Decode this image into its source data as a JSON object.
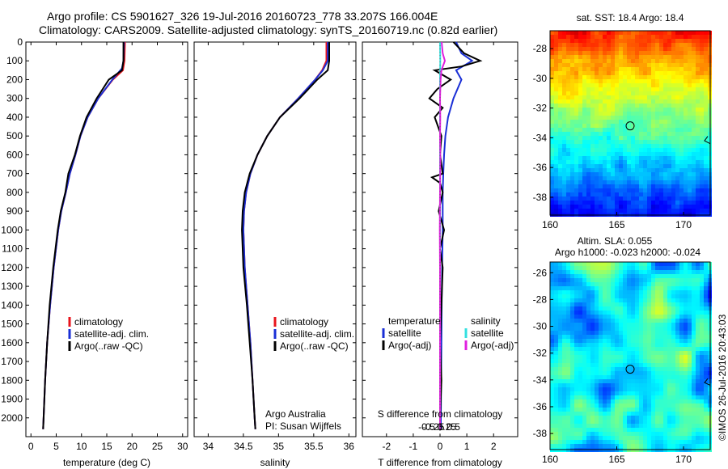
{
  "title_line1": "Argo profile: CS 5901627_326 19-Jul-2016 20160723_778 33.207S 166.004E",
  "title_line2": "Climatology: CARS2009. Satellite-adjusted climatology: synTS_20160719.nc (0.82d earlier)",
  "colors": {
    "climatology": "#e8141c",
    "satellite": "#1a2fd6",
    "argo": "#000000",
    "salinity_sat": "#33e0e0",
    "salinity_argo": "#e020e0"
  },
  "chart_data": [
    {
      "type": "line",
      "id": "temperature",
      "xlabel": "temperature (deg C)",
      "ylabel": "",
      "xlim": [
        -1,
        31
      ],
      "ylim": [
        2100,
        0
      ],
      "xticks": [
        0,
        5,
        10,
        15,
        20,
        25,
        30
      ],
      "yticks": [
        0,
        100,
        200,
        300,
        400,
        500,
        600,
        700,
        800,
        900,
        1000,
        1100,
        1200,
        1300,
        1400,
        1500,
        1600,
        1700,
        1800,
        1900,
        2000
      ],
      "legend": [
        "climatology",
        "satellite-adj. clim.",
        "Argo(..raw -QC)"
      ],
      "series": [
        {
          "name": "climatology",
          "depth": [
            0,
            100,
            150,
            200,
            300,
            400,
            500,
            600,
            700,
            800,
            900,
            1000,
            1200,
            1400,
            1600,
            1800,
            2000,
            2060
          ],
          "values": [
            18.6,
            18.5,
            18.2,
            16.2,
            13.3,
            11.2,
            9.8,
            8.8,
            7.7,
            6.9,
            6.0,
            5.4,
            4.5,
            3.8,
            3.2,
            2.8,
            2.5,
            2.4
          ]
        },
        {
          "name": "satellite-adj. clim.",
          "depth": [
            0,
            100,
            140,
            200,
            300,
            400,
            500,
            600,
            700,
            800,
            900,
            1000,
            1200,
            1400,
            1600,
            1800,
            2000,
            2060
          ],
          "values": [
            18.4,
            18.3,
            18.0,
            16.1,
            13.3,
            11.2,
            9.8,
            8.8,
            7.7,
            6.9,
            6.0,
            5.4,
            4.5,
            3.8,
            3.2,
            2.8,
            2.5,
            2.4
          ]
        },
        {
          "name": "Argo(..raw -QC)",
          "depth": [
            0,
            100,
            150,
            200,
            300,
            400,
            500,
            600,
            700,
            800,
            900,
            1000,
            1200,
            1400,
            1600,
            1800,
            2000,
            2060
          ],
          "values": [
            18.3,
            18.3,
            18.0,
            15.4,
            13.0,
            11.0,
            9.7,
            8.7,
            7.4,
            6.8,
            5.9,
            5.3,
            4.4,
            3.7,
            3.2,
            2.8,
            2.5,
            2.4
          ]
        }
      ]
    },
    {
      "type": "line",
      "id": "salinity",
      "xlabel": "salinity",
      "ylabel": "",
      "xlim": [
        33.8,
        36.1
      ],
      "ylim": [
        2100,
        0
      ],
      "xticks": [
        34,
        34.5,
        35,
        35.5,
        36
      ],
      "xticklabels": [
        "34",
        "34.5",
        "35",
        "35.5",
        "36"
      ],
      "legend": [
        "climatology",
        "satellite-adj. clim.",
        "Argo(..raw -QC)"
      ],
      "annotation": [
        "Argo Australia",
        "PI: Susan Wijffels"
      ],
      "series": [
        {
          "name": "climatology",
          "depth": [
            0,
            100,
            150,
            200,
            300,
            400,
            500,
            600,
            700,
            800,
            900,
            1000,
            1200,
            1400,
            1600,
            1800,
            2000,
            2060
          ],
          "values": [
            35.68,
            35.68,
            35.62,
            35.52,
            35.28,
            35.02,
            34.84,
            34.7,
            34.6,
            34.54,
            34.51,
            34.5,
            34.52,
            34.56,
            34.6,
            34.63,
            34.66,
            34.67
          ]
        },
        {
          "name": "satellite-adj. clim.",
          "depth": [
            0,
            100,
            150,
            200,
            300,
            400,
            500,
            600,
            700,
            800,
            900,
            1000,
            1200,
            1400,
            1600,
            1800,
            2000,
            2060
          ],
          "values": [
            35.7,
            35.7,
            35.63,
            35.52,
            35.28,
            35.02,
            34.84,
            34.7,
            34.6,
            34.54,
            34.51,
            34.5,
            34.52,
            34.56,
            34.6,
            34.63,
            34.66,
            34.67
          ]
        },
        {
          "name": "Argo(..raw -QC)",
          "depth": [
            0,
            100,
            150,
            200,
            300,
            400,
            500,
            600,
            700,
            800,
            900,
            1000,
            1200,
            1400,
            1600,
            1800,
            2000,
            2060
          ],
          "values": [
            35.72,
            35.72,
            35.7,
            35.55,
            35.3,
            35.02,
            34.84,
            34.7,
            34.59,
            34.52,
            34.49,
            34.48,
            34.5,
            34.55,
            34.59,
            34.63,
            34.66,
            34.67
          ]
        }
      ]
    },
    {
      "type": "line",
      "id": "difference",
      "xlabel": "T difference from climatology",
      "xlabel2": "S difference from climatology",
      "xlim": [
        -2.9,
        2.9
      ],
      "ylim": [
        2100,
        0
      ],
      "xticks": [
        -2,
        -1,
        0,
        1,
        2
      ],
      "xticks2": [
        -0.5,
        -0.25,
        0,
        0.25,
        0.5
      ],
      "xticklabels2": [
        "-0.5",
        "-0.25",
        "0",
        "0.25",
        "0.5"
      ],
      "legend_temperature_title": "temperature",
      "legend_salinity_title": "salinity",
      "legend_temperature": [
        "satellite",
        "Argo(-adj)"
      ],
      "legend_salinity": [
        "satellite",
        "Argo(-adj)"
      ],
      "series": [
        {
          "name": "T satellite",
          "depth": [
            0,
            60,
            100,
            150,
            200,
            300,
            400,
            500,
            600,
            700,
            800,
            900,
            1000,
            1200,
            1400,
            1600,
            1800,
            2000,
            2060
          ],
          "values": [
            0.6,
            0.8,
            1.2,
            0.6,
            0.8,
            0.5,
            0.3,
            0.2,
            0.15,
            0.12,
            0.1,
            0.1,
            0.1,
            0.08,
            0.06,
            0.05,
            0.04,
            0.03,
            0.03
          ]
        },
        {
          "name": "T Argo(-adj)",
          "depth": [
            0,
            60,
            100,
            130,
            150,
            200,
            250,
            300,
            350,
            400,
            500,
            600,
            700,
            720,
            750,
            800,
            900,
            1000,
            1100,
            1200,
            1400,
            1600,
            1800,
            2000,
            2060
          ],
          "values": [
            0.5,
            0.9,
            1.5,
            0.8,
            -0.2,
            0.4,
            -0.1,
            -0.4,
            0.1,
            -0.2,
            0.05,
            0.0,
            0.1,
            -0.3,
            0.0,
            0.1,
            -0.05,
            0.15,
            0.0,
            0.1,
            0.05,
            0.0,
            0.05,
            0.0,
            0.0
          ]
        },
        {
          "name": "S satellite",
          "depth": [
            0,
            100,
            200,
            300,
            500,
            1000,
            1500,
            2000,
            2060
          ],
          "values": [
            0.0,
            0.01,
            0.0,
            0.0,
            0.0,
            0.0,
            0.0,
            0.0,
            0.0
          ]
        },
        {
          "name": "S Argo(-adj)",
          "depth": [
            0,
            60,
            100,
            150,
            200,
            300,
            400,
            500,
            600,
            800,
            1000,
            1200,
            1500,
            2000,
            2060
          ],
          "values": [
            0.06,
            0.1,
            0.18,
            0.05,
            0.02,
            0.0,
            0.01,
            0.0,
            0.01,
            0.0,
            -0.01,
            0.0,
            0.0,
            0.0,
            0.0
          ]
        }
      ]
    },
    {
      "type": "heatmap",
      "id": "sst_map",
      "title": "sat. SST: 18.4 Argo: 18.4",
      "xticks": [
        160,
        165,
        170
      ],
      "yticks": [
        -28,
        -30,
        -32,
        -34,
        -36,
        -38
      ],
      "xlim": [
        160,
        172
      ],
      "ylim": [
        -39.2,
        -26.8
      ],
      "marker": {
        "lon": 166.0,
        "lat": -33.2
      }
    },
    {
      "type": "heatmap",
      "id": "sla_map",
      "title": "Altim. SLA: 0.055",
      "subtitle": "Argo h1000: -0.023 h2000: -0.024",
      "xticks": [
        160,
        165,
        170
      ],
      "yticks": [
        -26,
        -28,
        -30,
        -32,
        -34,
        -36,
        -38
      ],
      "xlim": [
        160,
        172
      ],
      "ylim": [
        -39.2,
        -25.2
      ],
      "marker": {
        "lon": 166.0,
        "lat": -33.2
      }
    }
  ],
  "watermark": "©IMOS 26-Jul-2016 20:43:03"
}
